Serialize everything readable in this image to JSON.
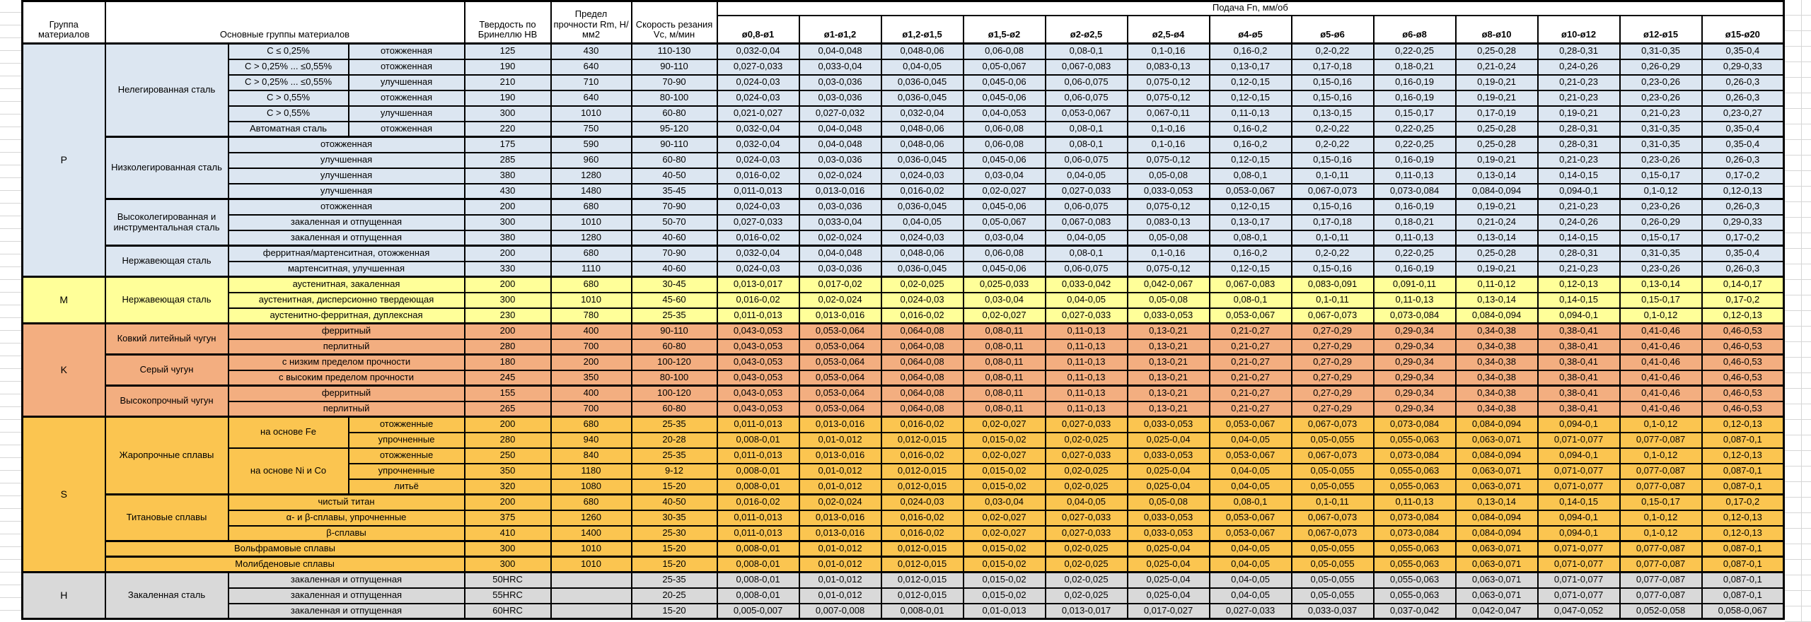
{
  "header": {
    "group": "Группа материалов",
    "materials": "Основные группы материалов",
    "hardness": "Твердость по Бринеллю HB",
    "strength": "Предел прочности Rm, Н/мм2",
    "speed": "Скорость резания Vc, м/мин",
    "feed_title": "Подача Fn, мм/об",
    "feed_cols": [
      "ø0,8-ø1",
      "ø1-ø1,2",
      "ø1,2-ø1,5",
      "ø1,5-ø2",
      "ø2-ø2,5",
      "ø2,5-ø4",
      "ø4-ø5",
      "ø5-ø6",
      "ø6-ø8",
      "ø8-ø10",
      "ø10-ø12",
      "ø12-ø15",
      "ø15-ø20"
    ]
  },
  "feed_patterns": {
    "A": [
      "0,032-0,04",
      "0,04-0,048",
      "0,048-0,06",
      "0,06-0,08",
      "0,08-0,1",
      "0,1-0,16",
      "0,16-0,2",
      "0,2-0,22",
      "0,22-0,25",
      "0,25-0,28",
      "0,28-0,31",
      "0,31-0,35",
      "0,35-0,4"
    ],
    "B": [
      "0,027-0,033",
      "0,033-0,04",
      "0,04-0,05",
      "0,05-0,067",
      "0,067-0,083",
      "0,083-0,13",
      "0,13-0,17",
      "0,17-0,18",
      "0,18-0,21",
      "0,21-0,24",
      "0,24-0,26",
      "0,26-0,29",
      "0,29-0,33"
    ],
    "C": [
      "0,024-0,03",
      "0,03-0,036",
      "0,036-0,045",
      "0,045-0,06",
      "0,06-0,075",
      "0,075-0,12",
      "0,12-0,15",
      "0,15-0,16",
      "0,16-0,19",
      "0,19-0,21",
      "0,21-0,23",
      "0,23-0,26",
      "0,26-0,3"
    ],
    "D": [
      "0,021-0,027",
      "0,027-0,032",
      "0,032-0,04",
      "0,04-0,053",
      "0,053-0,067",
      "0,067-0,11",
      "0,11-0,13",
      "0,13-0,15",
      "0,15-0,17",
      "0,17-0,19",
      "0,19-0,21",
      "0,21-0,23",
      "0,23-0,27"
    ],
    "E": [
      "0,016-0,02",
      "0,02-0,024",
      "0,024-0,03",
      "0,03-0,04",
      "0,04-0,05",
      "0,05-0,08",
      "0,08-0,1",
      "0,1-0,11",
      "0,11-0,13",
      "0,13-0,14",
      "0,14-0,15",
      "0,15-0,17",
      "0,17-0,2"
    ],
    "F": [
      "0,011-0,013",
      "0,013-0,016",
      "0,016-0,02",
      "0,02-0,027",
      "0,027-0,033",
      "0,033-0,053",
      "0,053-0,067",
      "0,067-0,073",
      "0,073-0,084",
      "0,084-0,094",
      "0,094-0,1",
      "0,1-0,12",
      "0,12-0,13"
    ],
    "G": [
      "0,013-0,017",
      "0,017-0,02",
      "0,02-0,025",
      "0,025-0,033",
      "0,033-0,042",
      "0,042-0,067",
      "0,067-0,083",
      "0,083-0,091",
      "0,091-0,11",
      "0,11-0,12",
      "0,12-0,13",
      "0,13-0,14",
      "0,14-0,17"
    ],
    "K": [
      "0,043-0,053",
      "0,053-0,064",
      "0,064-0,08",
      "0,08-0,11",
      "0,11-0,13",
      "0,13-0,21",
      "0,21-0,27",
      "0,27-0,29",
      "0,29-0,34",
      "0,34-0,38",
      "0,38-0,41",
      "0,41-0,46",
      "0,46-0,53"
    ],
    "S": [
      "0,008-0,01",
      "0,01-0,012",
      "0,012-0,015",
      "0,015-0,02",
      "0,02-0,025",
      "0,025-0,04",
      "0,04-0,05",
      "0,05-0,055",
      "0,055-0,063",
      "0,063-0,071",
      "0,071-0,077",
      "0,077-0,087",
      "0,087-0,1"
    ],
    "H3": [
      "0,005-0,007",
      "0,007-0,008",
      "0,008-0,01",
      "0,01-0,013",
      "0,013-0,017",
      "0,017-0,027",
      "0,027-0,033",
      "0,033-0,037",
      "0,037-0,042",
      "0,042-0,047",
      "0,047-0,052",
      "0,052-0,058",
      "0,058-0,067"
    ]
  },
  "groups": [
    {
      "label": "P",
      "color": "#DCE6F1",
      "blocks": [
        {
          "name": "Нелегированная сталь",
          "rows": [
            {
              "sub": "C ≤ 0,25%",
              "treat": "отожженная",
              "hb": "125",
              "rm": "430",
              "vc": "110-130",
              "fp": "A"
            },
            {
              "sub": "C > 0,25% ... ≤0,55%",
              "treat": "отожженная",
              "hb": "190",
              "rm": "640",
              "vc": "90-110",
              "fp": "B"
            },
            {
              "sub": "C > 0,25% ... ≤0,55%",
              "treat": "улучшенная",
              "hb": "210",
              "rm": "710",
              "vc": "70-90",
              "fp": "C"
            },
            {
              "sub": "C > 0,55%",
              "treat": "отожженная",
              "hb": "190",
              "rm": "640",
              "vc": "80-100",
              "fp": "C"
            },
            {
              "sub": "C > 0,55%",
              "treat": "улучшенная",
              "hb": "300",
              "rm": "1010",
              "vc": "60-80",
              "fp": "D"
            },
            {
              "sub": "Автоматная сталь",
              "treat": "отожженная",
              "hb": "220",
              "rm": "750",
              "vc": "95-120",
              "fp": "A"
            }
          ]
        },
        {
          "name": "Низколегированная сталь",
          "rows": [
            {
              "wide": "отожженная",
              "hb": "175",
              "rm": "590",
              "vc": "90-110",
              "fp": "A"
            },
            {
              "wide": "улучшенная",
              "hb": "285",
              "rm": "960",
              "vc": "60-80",
              "fp": "C"
            },
            {
              "wide": "улучшенная",
              "hb": "380",
              "rm": "1280",
              "vc": "40-50",
              "fp": "E"
            },
            {
              "wide": "улучшенная",
              "hb": "430",
              "rm": "1480",
              "vc": "35-45",
              "fp": "F"
            }
          ]
        },
        {
          "name": "Высоколегированная и инструментальная сталь",
          "rows": [
            {
              "wide": "отожженная",
              "hb": "200",
              "rm": "680",
              "vc": "70-90",
              "fp": "C"
            },
            {
              "wide": "закаленная и отпущенная",
              "hb": "300",
              "rm": "1010",
              "vc": "50-70",
              "fp": "B"
            },
            {
              "wide": "закаленная и отпущенная",
              "hb": "380",
              "rm": "1280",
              "vc": "40-60",
              "fp": "E"
            }
          ]
        },
        {
          "name": "Нержавеющая сталь",
          "rows": [
            {
              "wide": "ферритная/мартенситная, отожженная",
              "hb": "200",
              "rm": "680",
              "vc": "70-90",
              "fp": "A"
            },
            {
              "wide": "мартенситная, улучшенная",
              "hb": "330",
              "rm": "1110",
              "vc": "40-60",
              "fp": "C"
            }
          ]
        }
      ]
    },
    {
      "label": "M",
      "color": "#FFFF99",
      "blocks": [
        {
          "name": "Нержавеющая сталь",
          "rows": [
            {
              "wide": "аустенитная, закаленная",
              "hb": "200",
              "rm": "680",
              "vc": "30-45",
              "fp": "G"
            },
            {
              "wide": "аустенитная, дисперсионно твердеющая",
              "hb": "300",
              "rm": "1010",
              "vc": "45-60",
              "fp": "E"
            },
            {
              "wide": "аустенитно-ферритная, дуплексная",
              "hb": "230",
              "rm": "780",
              "vc": "25-35",
              "fp": "F"
            }
          ]
        }
      ]
    },
    {
      "label": "K",
      "color": "#F3AE80",
      "blocks": [
        {
          "name": "Ковкий литейный чугун",
          "rows": [
            {
              "wide": "ферритный",
              "hb": "200",
              "rm": "400",
              "vc": "90-110",
              "fp": "K"
            },
            {
              "wide": "перлитный",
              "hb": "280",
              "rm": "700",
              "vc": "60-80",
              "fp": "K"
            }
          ]
        },
        {
          "name": "Серый чугун",
          "rows": [
            {
              "wide": "с низким пределом прочности",
              "hb": "180",
              "rm": "200",
              "vc": "100-120",
              "fp": "K"
            },
            {
              "wide": "с высоким пределом прочности",
              "hb": "245",
              "rm": "350",
              "vc": "80-100",
              "fp": "K"
            }
          ]
        },
        {
          "name": "Высокопрочный чугун",
          "rows": [
            {
              "wide": "ферритный",
              "hb": "155",
              "rm": "400",
              "vc": "100-120",
              "fp": "K"
            },
            {
              "wide": "перлитный",
              "hb": "265",
              "rm": "700",
              "vc": "60-80",
              "fp": "K"
            }
          ]
        }
      ]
    },
    {
      "label": "S",
      "color": "#FBC550",
      "blocks": [
        {
          "name": "Жаропрочные сплавы",
          "rows": [
            {
              "sub": "на основе Fe",
              "subspan": 2,
              "treat": "отожженные",
              "hb": "200",
              "rm": "680",
              "vc": "25-35",
              "fp": "F"
            },
            {
              "treat": "упрочненные",
              "hb": "280",
              "rm": "940",
              "vc": "20-28",
              "fp": "S"
            },
            {
              "sub": "на основе Ni и Co",
              "subspan": 3,
              "treat": "отожженные",
              "hb": "250",
              "rm": "840",
              "vc": "25-35",
              "fp": "F"
            },
            {
              "treat": "упрочненные",
              "hb": "350",
              "rm": "1180",
              "vc": "9-12",
              "fp": "S"
            },
            {
              "treat": "литьё",
              "hb": "320",
              "rm": "1080",
              "vc": "15-20",
              "fp": "S"
            }
          ]
        },
        {
          "name": "Титановые сплавы",
          "rows": [
            {
              "wide": "чистый титан",
              "hb": "200",
              "rm": "680",
              "vc": "40-50",
              "fp": "E"
            },
            {
              "wide": "α- и β-сплавы, упрочненные",
              "hb": "375",
              "rm": "1260",
              "vc": "30-35",
              "fp": "F"
            },
            {
              "wide": "β-сплавы",
              "hb": "410",
              "rm": "1400",
              "vc": "25-30",
              "fp": "F"
            }
          ]
        },
        {
          "name": "Вольфрамовые сплавы",
          "full": true,
          "rows": [
            {
              "hb": "300",
              "rm": "1010",
              "vc": "15-20",
              "fp": "S"
            }
          ]
        },
        {
          "name": "Молибденовые сплавы",
          "full": true,
          "rows": [
            {
              "hb": "300",
              "rm": "1010",
              "vc": "15-20",
              "fp": "S"
            }
          ]
        }
      ]
    },
    {
      "label": "H",
      "color": "#D9D9D9",
      "blocks": [
        {
          "name": "Закаленная сталь",
          "rows": [
            {
              "wide": "закаленная и отпущенная",
              "hb": "50HRC",
              "rm": "",
              "vc": "25-35",
              "fp": "S"
            },
            {
              "wide": "закаленная и отпущенная",
              "hb": "55HRC",
              "rm": "",
              "vc": "20-25",
              "fp": "S"
            },
            {
              "wide": "закаленная и отпущенная",
              "hb": "60HRC",
              "rm": "",
              "vc": "15-20",
              "fp": "H3"
            }
          ]
        }
      ]
    }
  ]
}
